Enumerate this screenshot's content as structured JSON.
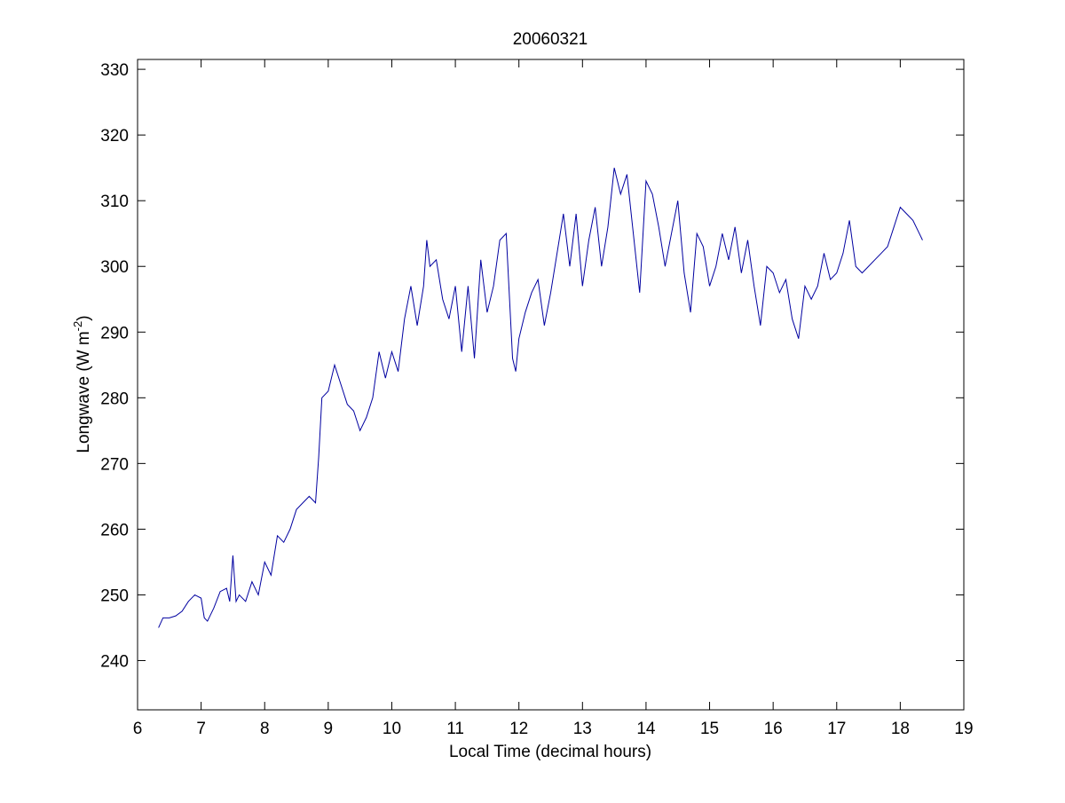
{
  "chart_data": {
    "type": "line",
    "title": "20060321",
    "x_label": "Local Time (decimal hours)",
    "y_label": {
      "text": "Longwave (W m",
      "superscript": "-2",
      "suffix": ")"
    },
    "xlim": [
      6,
      19
    ],
    "xticks": [
      6,
      7,
      8,
      9,
      10,
      11,
      12,
      13,
      14,
      15,
      16,
      17,
      18,
      19
    ],
    "ylim": [
      232.5,
      331.5
    ],
    "yticks": [
      240,
      250,
      260,
      270,
      280,
      290,
      300,
      310,
      320,
      330
    ],
    "grid": false,
    "series": [
      {
        "color": "#0000a0",
        "x": [
          6.33,
          6.4,
          6.5,
          6.6,
          6.7,
          6.8,
          6.9,
          7.0,
          7.05,
          7.1,
          7.2,
          7.3,
          7.4,
          7.45,
          7.5,
          7.55,
          7.6,
          7.7,
          7.8,
          7.9,
          8.0,
          8.1,
          8.2,
          8.3,
          8.4,
          8.5,
          8.6,
          8.7,
          8.8,
          8.85,
          8.9,
          9.0,
          9.1,
          9.2,
          9.3,
          9.4,
          9.5,
          9.6,
          9.7,
          9.8,
          9.9,
          10.0,
          10.1,
          10.2,
          10.3,
          10.4,
          10.5,
          10.55,
          10.6,
          10.7,
          10.8,
          10.9,
          11.0,
          11.1,
          11.2,
          11.3,
          11.4,
          11.5,
          11.6,
          11.7,
          11.8,
          11.9,
          11.95,
          12.0,
          12.1,
          12.2,
          12.3,
          12.4,
          12.5,
          12.6,
          12.7,
          12.8,
          12.9,
          13.0,
          13.1,
          13.2,
          13.3,
          13.4,
          13.5,
          13.6,
          13.7,
          13.8,
          13.9,
          14.0,
          14.1,
          14.2,
          14.3,
          14.4,
          14.5,
          14.6,
          14.7,
          14.8,
          14.9,
          15.0,
          15.1,
          15.2,
          15.3,
          15.4,
          15.5,
          15.6,
          15.7,
          15.8,
          15.9,
          16.0,
          16.1,
          16.2,
          16.3,
          16.4,
          16.5,
          16.6,
          16.7,
          16.8,
          16.9,
          17.0,
          17.1,
          17.2,
          17.3,
          17.4,
          17.5,
          17.6,
          17.7,
          17.8,
          17.9,
          18.0,
          18.1,
          18.2,
          18.3,
          18.35
        ],
        "values": [
          245,
          246.5,
          246.5,
          246.8,
          247.5,
          249,
          250,
          249.5,
          246.5,
          246,
          248,
          250.5,
          251,
          249,
          256,
          249,
          250,
          249,
          252,
          250,
          255,
          253,
          259,
          258,
          260,
          263,
          264,
          265,
          264,
          271,
          280,
          281,
          285,
          282,
          279,
          278,
          275,
          277,
          280,
          287,
          283,
          287,
          284,
          292,
          297,
          291,
          297,
          304,
          300,
          301,
          295,
          292,
          297,
          287,
          297,
          286,
          301,
          293,
          297,
          304,
          305,
          286,
          284,
          289,
          293,
          296,
          298,
          291,
          296,
          302,
          308,
          300,
          308,
          297,
          304,
          309,
          300,
          306,
          315,
          311,
          314,
          305,
          296,
          313,
          311,
          306,
          300,
          305,
          310,
          299,
          293,
          305,
          303,
          297,
          300,
          305,
          301,
          306,
          299,
          304,
          297,
          291,
          300,
          299,
          296,
          298,
          292,
          289,
          297,
          295,
          297,
          302,
          298,
          299,
          302,
          307,
          300,
          299,
          300,
          301,
          302,
          303,
          306,
          309,
          308,
          307,
          305,
          304
        ]
      }
    ]
  }
}
